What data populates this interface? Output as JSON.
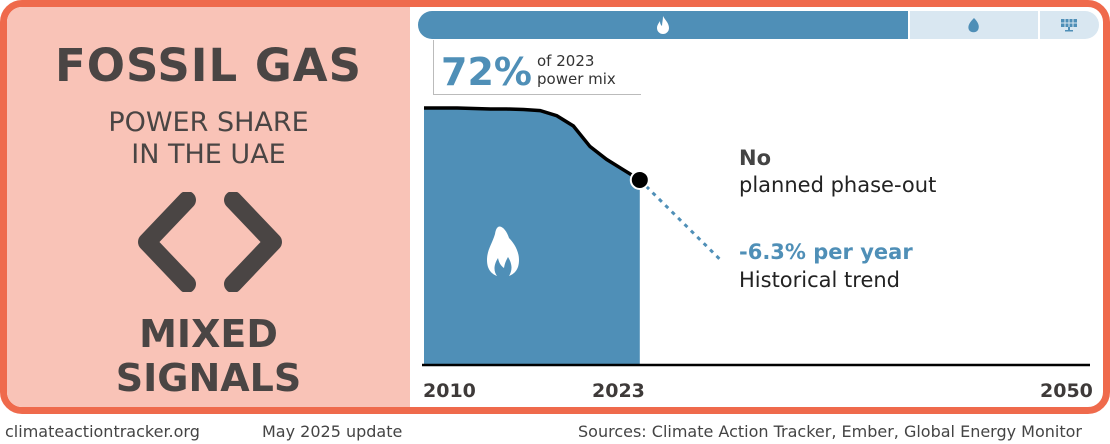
{
  "left_panel": {
    "title": "FOSSIL GAS",
    "subtitle_line1": "POWER SHARE",
    "subtitle_line2": "IN THE UAE",
    "rating_line1": "MIXED",
    "rating_line2": "SIGNALS",
    "rating_icon": "left-right-chevrons-icon"
  },
  "mix_bar": {
    "segments": [
      {
        "name": "fossil gas",
        "icon": "flame-icon",
        "share": 72,
        "color": "#4f8fb7"
      },
      {
        "name": "other low-carbon",
        "icon": "leaf-icon",
        "share": 19,
        "color": "#d9e7f1"
      },
      {
        "name": "solar",
        "icon": "solar-panel-icon",
        "share": 9,
        "color": "#d9e7f1"
      }
    ]
  },
  "callout": {
    "value": "72%",
    "label_line1": "of 2023",
    "label_line2": "power mix"
  },
  "annotations": {
    "plan_bold": "No",
    "plan_text": "planned phase-out",
    "trend_value": "-6.3% per year",
    "trend_label": "Historical trend"
  },
  "chart_data": {
    "type": "area",
    "title": "Fossil gas power share in the UAE",
    "x": [
      2010,
      2011,
      2012,
      2013,
      2014,
      2015,
      2016,
      2017,
      2018,
      2019,
      2020,
      2021,
      2022,
      2023
    ],
    "values": [
      100,
      100,
      100,
      99.8,
      99.6,
      99.6,
      99.4,
      99,
      97,
      93,
      85,
      80,
      76,
      72
    ],
    "trend": {
      "x": [
        2023,
        2028
      ],
      "values": [
        72,
        40
      ],
      "style": "dashed"
    },
    "xlim": [
      2010,
      2050
    ],
    "ylim": [
      0,
      100
    ],
    "tick_labels": [
      "2010",
      "2023",
      "2050"
    ],
    "colors": {
      "area": "#4f8fb7",
      "line": "#000000",
      "trend": "#4f8fb7"
    }
  },
  "footer": {
    "site": "climateactiontracker.org",
    "update": "May 2025 update",
    "sources": "Sources: Climate Action Tracker, Ember, Global Energy Monitor"
  }
}
